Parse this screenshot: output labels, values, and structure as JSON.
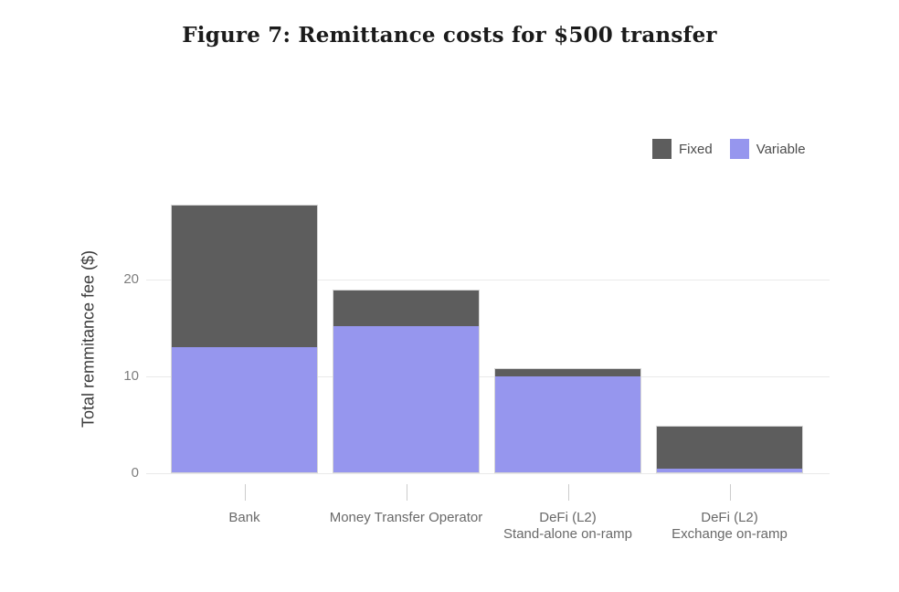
{
  "figure": {
    "title": "Figure 7: Remittance costs for $500 transfer"
  },
  "legend": {
    "items": [
      {
        "label": "Fixed",
        "color": "#5d5d5d"
      },
      {
        "label": "Variable",
        "color": "#9696ee"
      }
    ]
  },
  "chart_data": {
    "type": "bar",
    "stacked": true,
    "title": "Figure 7: Remittance costs for $500 transfer",
    "categories": [
      "Bank",
      "Money Transfer Operator",
      "DeFi (L2)\nStand-alone on-ramp",
      "DeFi (L2)\nExchange on-ramp"
    ],
    "series": [
      {
        "name": "Fixed",
        "color": "#5d5d5d",
        "values": [
          14.7,
          3.7,
          0.7,
          4.5
        ]
      },
      {
        "name": "Variable",
        "color": "#9696ee",
        "values": [
          13.0,
          15.2,
          10.1,
          0.4
        ]
      }
    ],
    "totals": [
      27.7,
      18.9,
      10.8,
      4.9
    ],
    "xlabel": "",
    "ylabel": "Total remmitance fee ($)",
    "yticks": [
      0,
      10,
      20
    ],
    "ylim": [
      0,
      30
    ],
    "grid": true,
    "legend_position": "top-right",
    "colors": {
      "gridline": "#eaeaea",
      "tick_label": "#7d7d7d",
      "axis_label": "#696969"
    }
  }
}
